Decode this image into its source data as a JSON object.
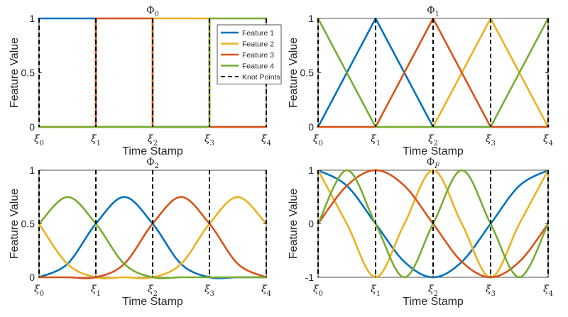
{
  "chart_data": [
    {
      "type": "line",
      "title": "Φ0",
      "xlabel": "Time Stamp",
      "ylabel": "Feature Value",
      "xlim": [
        0,
        4
      ],
      "ylim": [
        0,
        1
      ],
      "x_ticks": [
        0,
        1,
        2,
        3,
        4
      ],
      "y_ticks": [
        0,
        0.5,
        1
      ],
      "y_tick_labels": [
        "0",
        "0.5",
        "1"
      ],
      "series": [
        {
          "name": "Feature 1",
          "color": "#0072BD",
          "x": [
            0,
            1,
            1,
            4
          ],
          "y": [
            1,
            1,
            0,
            0
          ]
        },
        {
          "name": "Feature 2",
          "color": "#EDB120",
          "x": [
            0,
            2,
            2,
            3,
            3,
            4
          ],
          "y": [
            0,
            0,
            1,
            1,
            0,
            0
          ]
        },
        {
          "name": "Feature 3",
          "color": "#D95319",
          "x": [
            0,
            1,
            1,
            2,
            2,
            4
          ],
          "y": [
            0,
            0,
            1,
            1,
            0,
            0
          ]
        },
        {
          "name": "Feature 4",
          "color": "#77AC30",
          "x": [
            0,
            3,
            3,
            4
          ],
          "y": [
            0,
            0,
            1,
            1
          ]
        }
      ],
      "knot_points": [
        0,
        1,
        2,
        3,
        4
      ],
      "legend": {
        "placement": "top-right",
        "entries": [
          "Feature 1",
          "Feature 2",
          "Feature 3",
          "Feature 4",
          "Knot Points"
        ]
      }
    },
    {
      "type": "line",
      "title": "Φ1",
      "xlabel": "Time Stamp",
      "ylabel": "Feature Value",
      "xlim": [
        0,
        4
      ],
      "ylim": [
        0,
        1
      ],
      "x_ticks": [
        0,
        1,
        2,
        3,
        4
      ],
      "y_ticks": [
        0,
        0.5,
        1
      ],
      "y_tick_labels": [
        "0",
        "0.5",
        "1"
      ],
      "series": [
        {
          "name": "Feature 1",
          "color": "#0072BD",
          "x": [
            0,
            1,
            2,
            4
          ],
          "y": [
            0,
            1,
            0,
            0
          ]
        },
        {
          "name": "Feature 2",
          "color": "#EDB120",
          "x": [
            0,
            2,
            3,
            4
          ],
          "y": [
            0,
            0,
            1,
            0
          ]
        },
        {
          "name": "Feature 3",
          "color": "#D95319",
          "x": [
            0,
            1,
            2,
            3,
            4
          ],
          "y": [
            0,
            0,
            1,
            0,
            0
          ]
        },
        {
          "name": "Feature 4",
          "color": "#77AC30",
          "x": [
            0,
            1,
            3,
            4
          ],
          "y": [
            1,
            0,
            0,
            1
          ]
        }
      ],
      "knot_points": [
        0,
        1,
        2,
        3,
        4
      ]
    },
    {
      "type": "line",
      "title": "Φ2",
      "xlabel": "Time Stamp",
      "ylabel": "Feature Value",
      "xlim": [
        0,
        4
      ],
      "ylim": [
        0,
        1
      ],
      "x_ticks": [
        0,
        1,
        2,
        3,
        4
      ],
      "y_ticks": [
        0,
        0.5,
        1
      ],
      "y_tick_labels": [
        "0",
        "0.5",
        "1"
      ],
      "series": [
        {
          "name": "Feature 1",
          "color": "#0072BD",
          "x": [
            0,
            0.5,
            1,
            1.5,
            2,
            2.5,
            3,
            3.5,
            4
          ],
          "y": [
            0,
            0.125,
            0.5,
            0.75,
            0.5,
            0.125,
            0,
            0,
            0
          ]
        },
        {
          "name": "Feature 2",
          "color": "#EDB120",
          "x": [
            0,
            0.5,
            1,
            1.5,
            2,
            2.5,
            3,
            3.5,
            4
          ],
          "y": [
            0.5,
            0.125,
            0,
            0,
            0,
            0.125,
            0.5,
            0.75,
            0.5
          ]
        },
        {
          "name": "Feature 3",
          "color": "#D95319",
          "x": [
            0,
            0.5,
            1,
            1.5,
            2,
            2.5,
            3,
            3.5,
            4
          ],
          "y": [
            0,
            0,
            0,
            0.125,
            0.5,
            0.75,
            0.5,
            0.125,
            0
          ]
        },
        {
          "name": "Feature 4",
          "color": "#77AC30",
          "x": [
            0,
            0.5,
            1,
            1.5,
            2,
            2.5,
            3,
            3.5,
            4
          ],
          "y": [
            0.5,
            0.75,
            0.5,
            0.125,
            0,
            0,
            0,
            0,
            0
          ]
        }
      ],
      "knot_points": [
        0,
        1,
        2,
        3,
        4
      ]
    },
    {
      "type": "line",
      "title": "ΦF",
      "xlabel": "Time Stamp",
      "ylabel": "Feature Value",
      "xlim": [
        0,
        4
      ],
      "ylim": [
        -1,
        1
      ],
      "x_ticks": [
        0,
        1,
        2,
        3,
        4
      ],
      "y_ticks": [
        -1,
        0,
        1
      ],
      "y_tick_labels": [
        "-1",
        "0",
        "1"
      ],
      "series": [
        {
          "name": "Feature 1",
          "color": "#0072BD",
          "x": [
            0,
            0.5,
            1,
            1.5,
            2,
            2.5,
            3,
            3.5,
            4
          ],
          "y": [
            1,
            0.71,
            0,
            -0.71,
            -1,
            -0.71,
            0,
            0.71,
            1
          ]
        },
        {
          "name": "Feature 2",
          "color": "#EDB120",
          "x": [
            0,
            0.5,
            1,
            1.5,
            2,
            2.5,
            3,
            3.5,
            4
          ],
          "y": [
            1,
            0,
            -1,
            0,
            1,
            0,
            -1,
            0,
            1
          ]
        },
        {
          "name": "Feature 3",
          "color": "#D95319",
          "x": [
            0,
            0.5,
            1,
            1.5,
            2,
            2.5,
            3,
            3.5,
            4
          ],
          "y": [
            0,
            0.71,
            1,
            0.71,
            0,
            -0.71,
            -1,
            -0.71,
            0
          ]
        },
        {
          "name": "Feature 4",
          "color": "#77AC30",
          "x": [
            0,
            0.5,
            1,
            1.5,
            2,
            2.5,
            3,
            3.5,
            4
          ],
          "y": [
            0,
            1,
            0,
            -1,
            0,
            1,
            0,
            -1,
            0
          ]
        }
      ],
      "knot_points": [
        0,
        1,
        2,
        3,
        4
      ]
    }
  ]
}
